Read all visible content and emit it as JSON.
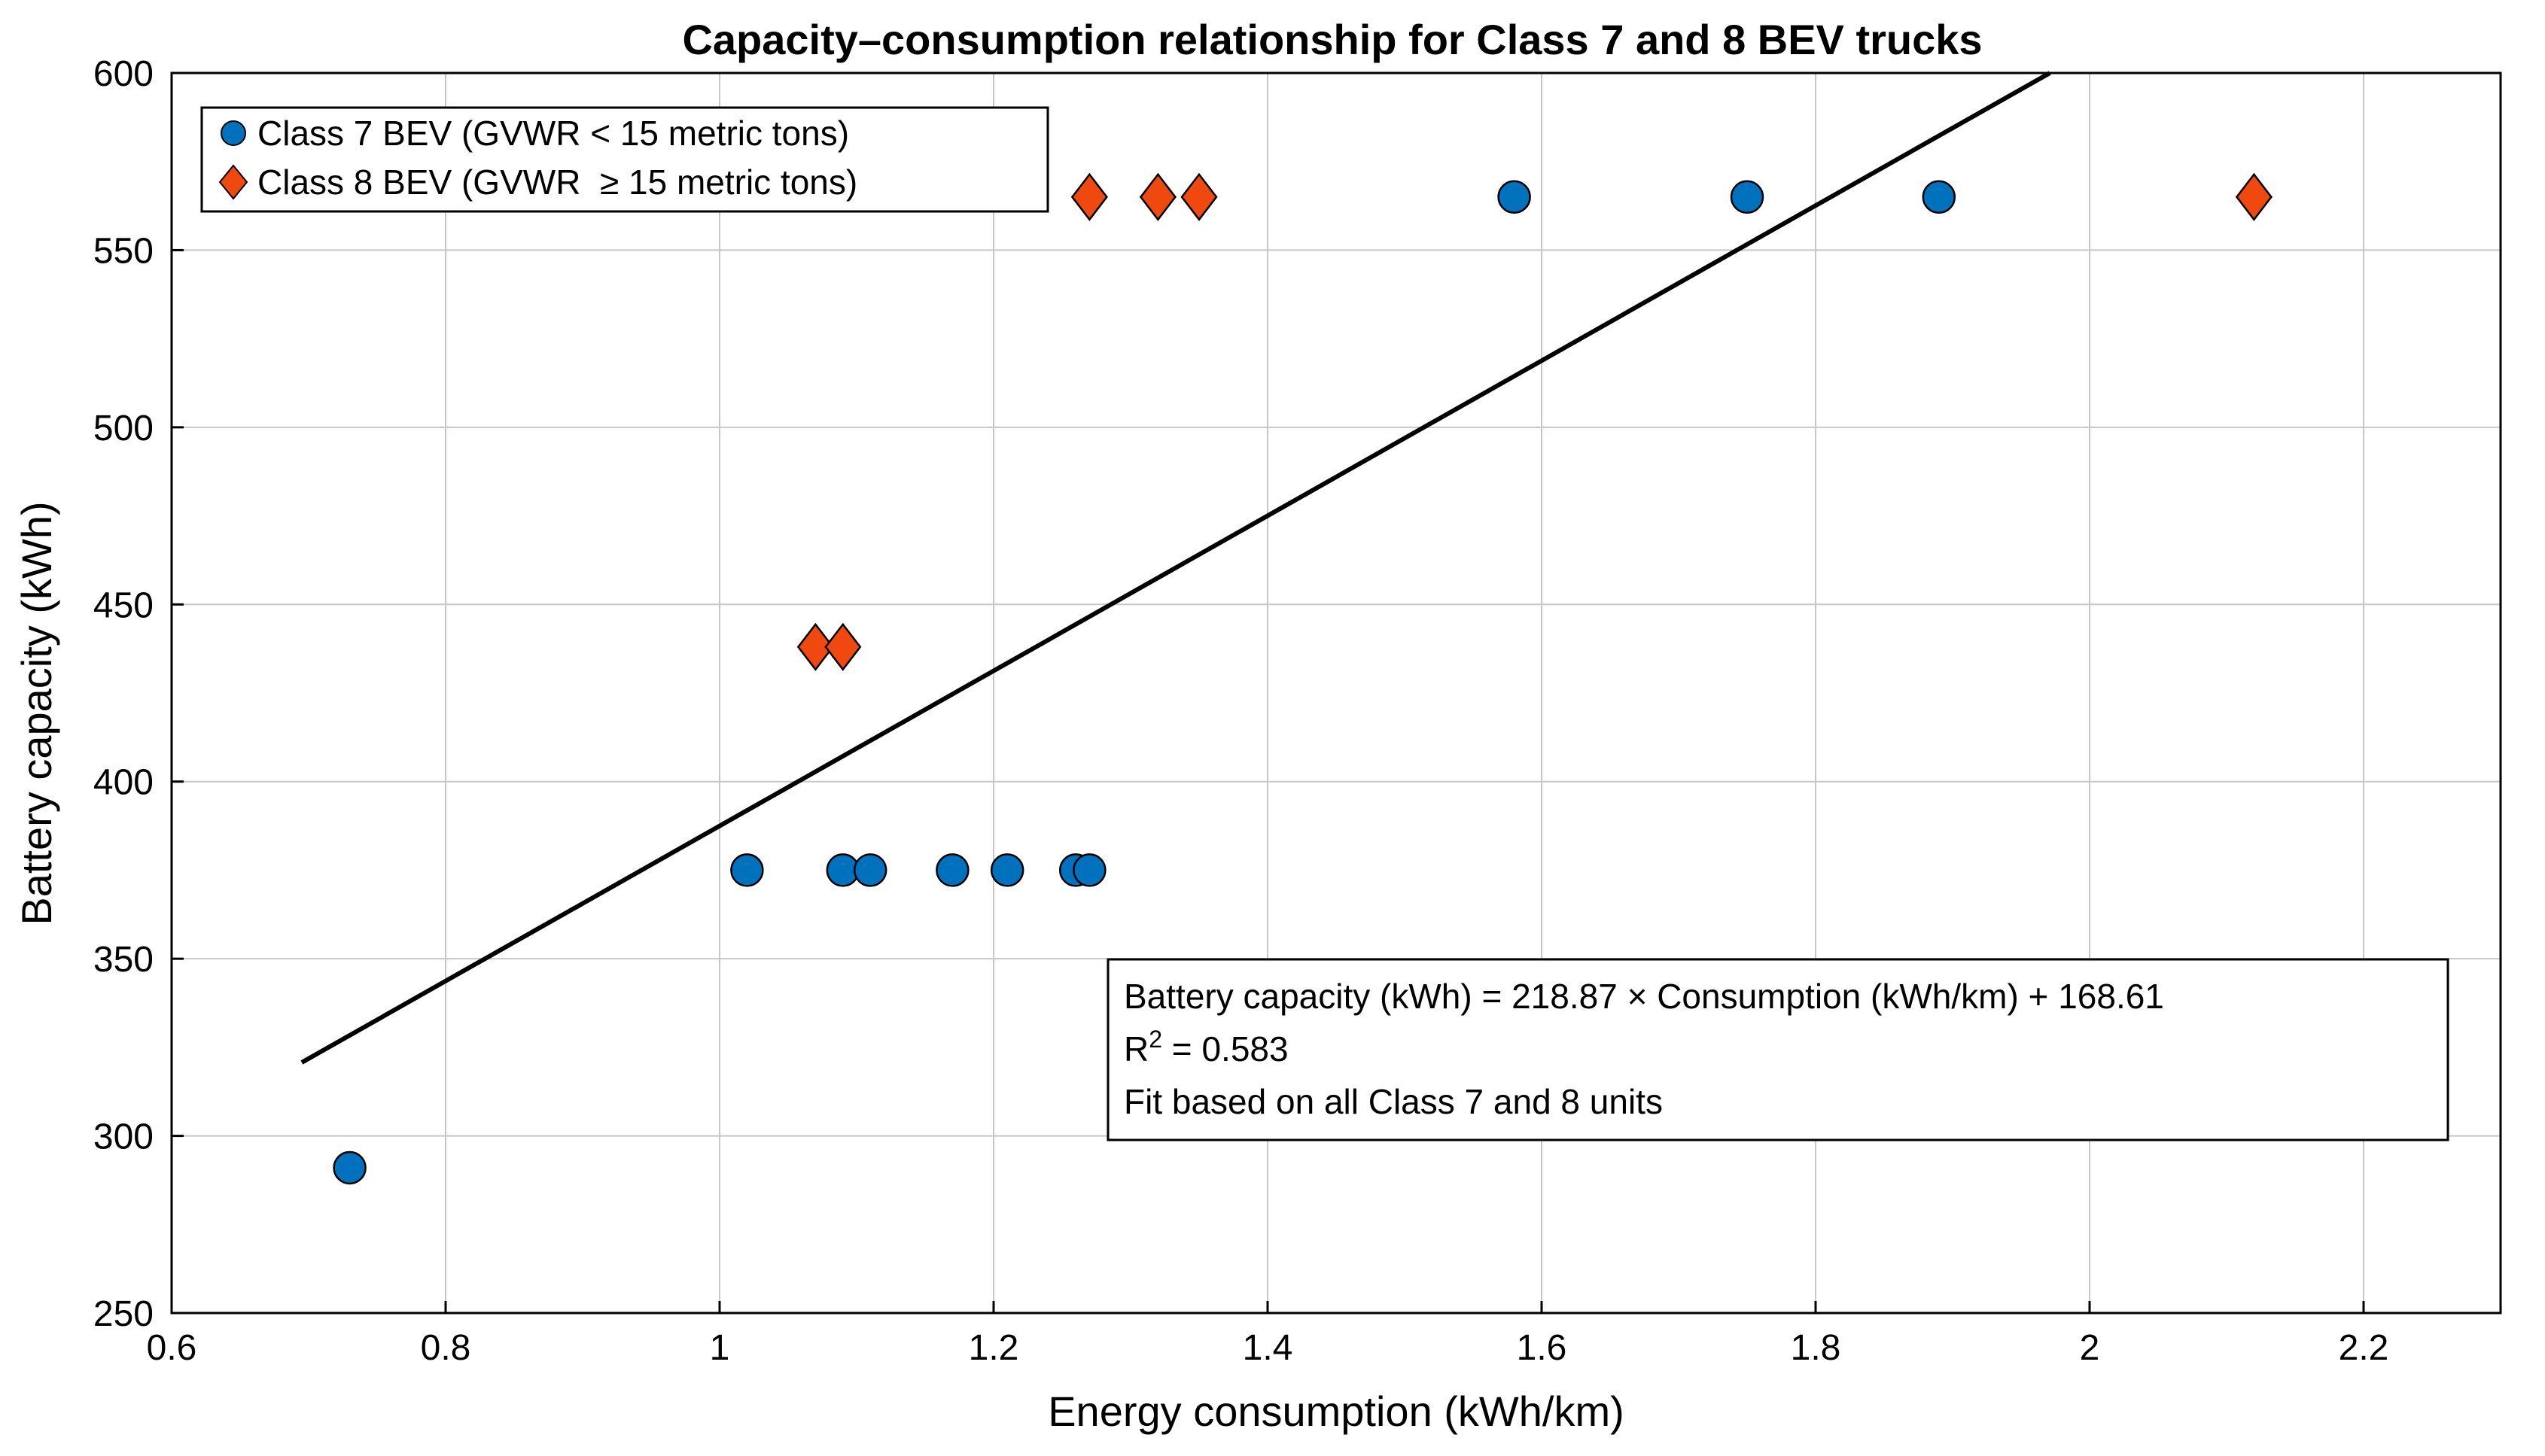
{
  "chart_data": {
    "type": "scatter",
    "title": "Capacity–consumption relationship for Class 7 and 8 BEV trucks",
    "xlabel": "Energy consumption (kWh/km)",
    "ylabel": "Battery capacity (kWh)",
    "xlim": [
      0.6,
      2.3
    ],
    "ylim": [
      250,
      600
    ],
    "grid": true,
    "xticks": [
      0.6,
      0.8,
      1,
      1.2,
      1.4,
      1.6,
      1.8,
      2,
      2.2
    ],
    "xtick_labels": [
      "0.6",
      "0.8",
      "1",
      "1.2",
      "1.4",
      "1.6",
      "1.8",
      "2",
      "2.2"
    ],
    "yticks": [
      250,
      300,
      350,
      400,
      450,
      500,
      550,
      600
    ],
    "ytick_labels": [
      "250",
      "300",
      "350",
      "400",
      "450",
      "500",
      "550",
      "600"
    ],
    "legend_position": "top-left",
    "series": [
      {
        "name": "Class 7 BEV (GVWR < 15 metric tons)",
        "marker": "circle",
        "color": "#0072BD",
        "x": [
          0.73,
          1.02,
          1.09,
          1.11,
          1.17,
          1.21,
          1.26,
          1.27,
          1.58,
          1.75,
          1.89
        ],
        "y": [
          291,
          375,
          375,
          375,
          375,
          375,
          375,
          375,
          565,
          565,
          565
        ]
      },
      {
        "name": "Class 8 BEV (GVWR  ≥ 15 metric tons)",
        "marker": "diamond",
        "color": "#F0490F",
        "x": [
          1.07,
          1.09,
          1.27,
          1.32,
          1.35,
          2.12
        ],
        "y": [
          438,
          438,
          565,
          565,
          565,
          565
        ]
      }
    ],
    "fit_line": {
      "slope": 218.87,
      "intercept": 168.61,
      "x_start": 0.695,
      "color": "#000000"
    },
    "annotation": {
      "equation": "Battery capacity (kWh) = 218.87 × Consumption (kWh/km) + 168.61",
      "r2_label": "R",
      "r2_sup": "2",
      "r2_value": " = 0.583",
      "note": "Fit based on all Class 7 and 8 units"
    }
  }
}
